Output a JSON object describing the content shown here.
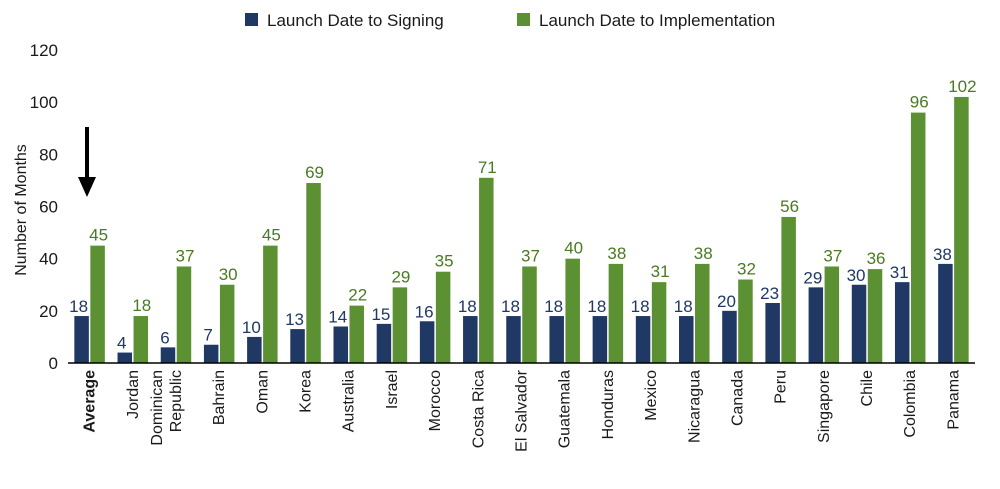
{
  "chart_data": {
    "type": "bar",
    "title": "",
    "xlabel": "",
    "ylabel": "Number of Months",
    "ylim": [
      0,
      120
    ],
    "yticks": [
      0,
      20,
      40,
      60,
      80,
      100,
      120
    ],
    "grid": false,
    "legend_position": "top-center",
    "categories": [
      [
        "Average"
      ],
      [
        "Jordan"
      ],
      [
        "Dominican",
        "Republic"
      ],
      [
        "Bahrain"
      ],
      [
        "Oman"
      ],
      [
        "Korea"
      ],
      [
        "Australia"
      ],
      [
        "Israel"
      ],
      [
        "Morocco"
      ],
      [
        "Costa Rica"
      ],
      [
        "El Salvador"
      ],
      [
        "Guatemala"
      ],
      [
        "Honduras"
      ],
      [
        "Mexico"
      ],
      [
        "Nicaragua"
      ],
      [
        "Canada"
      ],
      [
        "Peru"
      ],
      [
        "Singapore"
      ],
      [
        "Chile"
      ],
      [
        "Colombia"
      ],
      [
        "Panama"
      ]
    ],
    "highlight_category": "Average",
    "series": [
      {
        "name": "Launch Date to Signing",
        "color": "#1f3864",
        "values": [
          18,
          4,
          6,
          7,
          10,
          13,
          14,
          15,
          16,
          18,
          18,
          18,
          18,
          18,
          18,
          20,
          23,
          29,
          30,
          31,
          38
        ]
      },
      {
        "name": "Launch Date to Implementation",
        "color": "#5b9132",
        "label_color": "#4a7a22",
        "values": [
          45,
          18,
          37,
          30,
          45,
          69,
          22,
          29,
          35,
          71,
          37,
          40,
          38,
          31,
          38,
          32,
          56,
          37,
          36,
          96,
          102
        ]
      }
    ],
    "annotation_icon": "down-arrow-icon"
  }
}
